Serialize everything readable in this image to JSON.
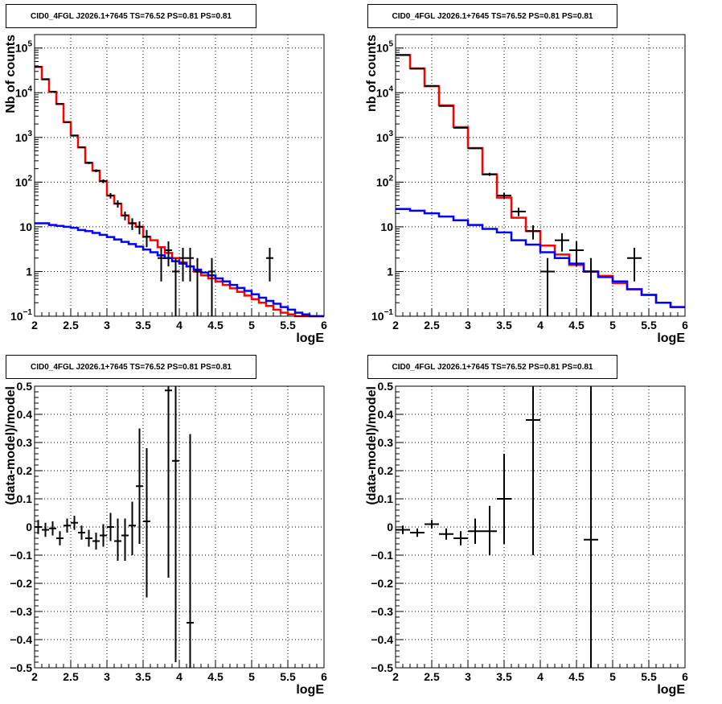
{
  "pads": [
    {
      "title": "CID0_4FGL J2026.1+7645 TS=76.52 PS=0.81 PS=0.81"
    },
    {
      "title": "CID0_4FGL J2026.1+7645 TS=76.52 PS=0.81 PS=0.81"
    },
    {
      "title": "CID0_4FGL J2026.1+7645 TS=76.52 PS=0.81 PS=0.81"
    },
    {
      "title": "CID0_4FGL J2026.1+7645 TS=76.52 PS=0.81 PS=0.81"
    }
  ],
  "colors": {
    "data": "#000000",
    "total_model": "#ff0000",
    "background_model": "#0000ff",
    "grid": "#000000"
  },
  "chart_data": [
    {
      "type": "line",
      "title": "CID0_4FGL J2026.1+7645 TS=76.52 PS=0.81 PS=0.81",
      "xlabel": "logE",
      "ylabel": "Nb of counts",
      "xlim": [
        2,
        6
      ],
      "ylim": [
        0.1,
        200000
      ],
      "yscale": "log",
      "grid": true,
      "xticks": [
        "2",
        "2.5",
        "3",
        "3.5",
        "4",
        "4.5",
        "5",
        "5.5",
        "6"
      ],
      "yticks": [
        {
          "v": 0.1,
          "m": "10",
          "e": "−1"
        },
        {
          "v": 1,
          "m": "1",
          "e": ""
        },
        {
          "v": 10,
          "m": "10",
          "e": ""
        },
        {
          "v": 100,
          "m": "10",
          "e": "2"
        },
        {
          "v": 1000,
          "m": "10",
          "e": "3"
        },
        {
          "v": 10000,
          "m": "10",
          "e": "4"
        },
        {
          "v": 100000,
          "m": "10",
          "e": "5"
        }
      ],
      "bin_width": 0.1,
      "series": [
        {
          "role": "total_model",
          "style": "step",
          "x_low": 2.0,
          "values": [
            38000,
            20000,
            10500,
            5600,
            2200,
            1100,
            600,
            270,
            180,
            105,
            50,
            33,
            18,
            12,
            10,
            6,
            5,
            3.5,
            2.6,
            2.0,
            1.6,
            1.3,
            1.0,
            0.82,
            0.7,
            0.6,
            0.5,
            0.42,
            0.35,
            0.29,
            0.24,
            0.2,
            0.17,
            0.14,
            0.12,
            0.11,
            0.1,
            0.1,
            0.1,
            0.1
          ]
        },
        {
          "role": "background_model",
          "style": "step",
          "x_low": 2.0,
          "values": [
            12,
            12,
            11,
            10.5,
            10,
            9.5,
            8.5,
            8,
            7.3,
            6.6,
            5.9,
            5.2,
            4.6,
            4.1,
            3.6,
            3.1,
            2.7,
            2.3,
            2.0,
            1.7,
            1.5,
            1.3,
            1.1,
            0.95,
            0.82,
            0.7,
            0.6,
            0.5,
            0.43,
            0.37,
            0.31,
            0.26,
            0.22,
            0.19,
            0.16,
            0.14,
            0.12,
            0.11,
            0.1,
            0.1
          ]
        },
        {
          "role": "data",
          "style": "errorbar",
          "half_width": 0.05,
          "points": [
            {
              "x": 2.05,
              "y": 38000,
              "lo": 37800,
              "hi": 38200
            },
            {
              "x": 2.15,
              "y": 20000,
              "lo": 19860,
              "hi": 20140
            },
            {
              "x": 2.25,
              "y": 10500,
              "lo": 10400,
              "hi": 10600
            },
            {
              "x": 2.35,
              "y": 5600,
              "lo": 5520,
              "hi": 5680
            },
            {
              "x": 2.45,
              "y": 2200,
              "lo": 2150,
              "hi": 2250
            },
            {
              "x": 2.55,
              "y": 1100,
              "lo": 1067,
              "hi": 1133
            },
            {
              "x": 2.65,
              "y": 600,
              "lo": 575,
              "hi": 625
            },
            {
              "x": 2.75,
              "y": 270,
              "lo": 254,
              "hi": 286
            },
            {
              "x": 2.85,
              "y": 180,
              "lo": 167,
              "hi": 193
            },
            {
              "x": 2.95,
              "y": 105,
              "lo": 95,
              "hi": 115
            },
            {
              "x": 3.05,
              "y": 50,
              "lo": 43,
              "hi": 57
            },
            {
              "x": 3.15,
              "y": 33,
              "lo": 27,
              "hi": 39
            },
            {
              "x": 3.25,
              "y": 18,
              "lo": 14,
              "hi": 22
            },
            {
              "x": 3.35,
              "y": 12,
              "lo": 8.5,
              "hi": 15.5
            },
            {
              "x": 3.45,
              "y": 10,
              "lo": 6.8,
              "hi": 13.2
            },
            {
              "x": 3.55,
              "y": 6,
              "lo": 3.5,
              "hi": 8.5
            },
            {
              "x": 3.75,
              "y": 2,
              "lo": 0.6,
              "hi": 3.4
            },
            {
              "x": 3.85,
              "y": 3,
              "lo": 1.3,
              "hi": 4.7
            },
            {
              "x": 3.95,
              "y": 1,
              "lo": 0.1,
              "hi": 2.0
            },
            {
              "x": 4.05,
              "y": 2,
              "lo": 0.6,
              "hi": 3.4
            },
            {
              "x": 4.15,
              "y": 2,
              "lo": 0.6,
              "hi": 3.4
            },
            {
              "x": 4.25,
              "y": 1,
              "lo": 0.1,
              "hi": 2.0
            },
            {
              "x": 4.45,
              "y": 1,
              "lo": 0.1,
              "hi": 2.0
            },
            {
              "x": 5.25,
              "y": 2,
              "lo": 0.6,
              "hi": 3.4
            }
          ]
        }
      ]
    },
    {
      "type": "line",
      "title": "CID0_4FGL J2026.1+7645 TS=76.52 PS=0.81 PS=0.81",
      "xlabel": "logE",
      "ylabel": "nb of counts",
      "xlim": [
        2,
        6
      ],
      "ylim": [
        0.1,
        200000
      ],
      "yscale": "log",
      "grid": true,
      "xticks": [
        "2",
        "2.5",
        "3",
        "3.5",
        "4",
        "4.5",
        "5",
        "5.5",
        "6"
      ],
      "yticks": [
        {
          "v": 0.1,
          "m": "10",
          "e": "−1"
        },
        {
          "v": 1,
          "m": "1",
          "e": ""
        },
        {
          "v": 10,
          "m": "10",
          "e": ""
        },
        {
          "v": 100,
          "m": "10",
          "e": "2"
        },
        {
          "v": 1000,
          "m": "10",
          "e": "3"
        },
        {
          "v": 10000,
          "m": "10",
          "e": "4"
        },
        {
          "v": 100000,
          "m": "10",
          "e": "5"
        }
      ],
      "bin_width": 0.2,
      "series": [
        {
          "role": "total_model",
          "style": "step",
          "x_low": 2.0,
          "values": [
            70000,
            35000,
            14000,
            5200,
            1700,
            580,
            150,
            45,
            16,
            8,
            3.8,
            2.4,
            1.4,
            1.0,
            0.8,
            0.55,
            0.4,
            0.3,
            0.2,
            0.16
          ]
        },
        {
          "role": "background_model",
          "style": "step",
          "x_low": 2.0,
          "values": [
            25,
            23,
            20,
            17,
            14,
            11,
            9,
            7.5,
            5,
            4,
            2.7,
            2.0,
            1.5,
            1.0,
            0.75,
            0.6,
            0.4,
            0.3,
            0.2,
            0.16
          ]
        },
        {
          "role": "data",
          "style": "errorbar",
          "half_width": 0.1,
          "points": [
            {
              "x": 2.1,
              "y": 70000,
              "lo": 69700,
              "hi": 70300
            },
            {
              "x": 2.3,
              "y": 34500,
              "lo": 34300,
              "hi": 34700
            },
            {
              "x": 2.5,
              "y": 14200,
              "lo": 14080,
              "hi": 14320
            },
            {
              "x": 2.7,
              "y": 5050,
              "lo": 4980,
              "hi": 5120
            },
            {
              "x": 2.9,
              "y": 1640,
              "lo": 1600,
              "hi": 1680
            },
            {
              "x": 3.1,
              "y": 570,
              "lo": 546,
              "hi": 594
            },
            {
              "x": 3.3,
              "y": 150,
              "lo": 138,
              "hi": 162
            },
            {
              "x": 3.5,
              "y": 50,
              "lo": 43,
              "hi": 57
            },
            {
              "x": 3.7,
              "y": 22,
              "lo": 17.3,
              "hi": 26.7
            },
            {
              "x": 3.9,
              "y": 8,
              "lo": 5.2,
              "hi": 10.8
            },
            {
              "x": 4.1,
              "y": 1,
              "lo": 0.1,
              "hi": 2.0
            },
            {
              "x": 4.3,
              "y": 5,
              "lo": 2.8,
              "hi": 7.2
            },
            {
              "x": 4.5,
              "y": 3,
              "lo": 1.3,
              "hi": 4.7
            },
            {
              "x": 4.7,
              "y": 1,
              "lo": 0.1,
              "hi": 2.0
            },
            {
              "x": 5.3,
              "y": 2,
              "lo": 0.6,
              "hi": 3.4
            }
          ]
        }
      ]
    },
    {
      "type": "scatter",
      "title": "CID0_4FGL J2026.1+7645 TS=76.52 PS=0.81 PS=0.81",
      "xlabel": "logE",
      "ylabel": "(data-model)/model",
      "xlim": [
        2,
        6
      ],
      "ylim": [
        -0.5,
        0.5
      ],
      "yscale": "linear",
      "grid": true,
      "xticks": [
        "2",
        "2.5",
        "3",
        "3.5",
        "4",
        "4.5",
        "5",
        "5.5",
        "6"
      ],
      "yticks": [
        {
          "v": -0.5,
          "m": "−0.5",
          "e": ""
        },
        {
          "v": -0.4,
          "m": "−0.4",
          "e": ""
        },
        {
          "v": -0.3,
          "m": "−0.3",
          "e": ""
        },
        {
          "v": -0.2,
          "m": "−0.2",
          "e": ""
        },
        {
          "v": -0.1,
          "m": "−0.1",
          "e": ""
        },
        {
          "v": 0,
          "m": "0",
          "e": ""
        },
        {
          "v": 0.1,
          "m": "0.1",
          "e": ""
        },
        {
          "v": 0.2,
          "m": "0.2",
          "e": ""
        },
        {
          "v": 0.3,
          "m": "0.3",
          "e": ""
        },
        {
          "v": 0.4,
          "m": "0.4",
          "e": ""
        },
        {
          "v": 0.5,
          "m": "0.5",
          "e": ""
        }
      ],
      "series": [
        {
          "role": "data",
          "style": "errorbar",
          "half_width": 0.05,
          "points": [
            {
              "x": 2.05,
              "y": 0.0,
              "lo": -0.025,
              "hi": 0.025
            },
            {
              "x": 2.15,
              "y": -0.01,
              "lo": -0.035,
              "hi": 0.015
            },
            {
              "x": 2.25,
              "y": -0.005,
              "lo": -0.03,
              "hi": 0.02
            },
            {
              "x": 2.35,
              "y": -0.04,
              "lo": -0.065,
              "hi": -0.015
            },
            {
              "x": 2.45,
              "y": 0.005,
              "lo": -0.02,
              "hi": 0.03
            },
            {
              "x": 2.55,
              "y": 0.015,
              "lo": -0.01,
              "hi": 0.04
            },
            {
              "x": 2.65,
              "y": -0.02,
              "lo": -0.045,
              "hi": 0.005
            },
            {
              "x": 2.75,
              "y": -0.04,
              "lo": -0.07,
              "hi": -0.01
            },
            {
              "x": 2.85,
              "y": -0.05,
              "lo": -0.08,
              "hi": -0.02
            },
            {
              "x": 2.95,
              "y": -0.03,
              "lo": -0.07,
              "hi": 0.01
            },
            {
              "x": 3.05,
              "y": 0.0,
              "lo": -0.05,
              "hi": 0.05
            },
            {
              "x": 3.15,
              "y": -0.05,
              "lo": -0.12,
              "hi": 0.03
            },
            {
              "x": 3.25,
              "y": -0.03,
              "lo": -0.12,
              "hi": 0.03
            },
            {
              "x": 3.35,
              "y": 0.005,
              "lo": -0.1,
              "hi": 0.09
            },
            {
              "x": 3.45,
              "y": 0.145,
              "lo": -0.06,
              "hi": 0.35
            },
            {
              "x": 3.55,
              "y": 0.02,
              "lo": -0.25,
              "hi": 0.28
            },
            {
              "x": 3.85,
              "y": 0.485,
              "lo": -0.18,
              "hi": 0.5
            },
            {
              "x": 3.95,
              "y": 0.235,
              "lo": -0.48,
              "hi": 0.5
            },
            {
              "x": 4.15,
              "y": -0.34,
              "lo": -0.5,
              "hi": 0.33
            }
          ]
        }
      ]
    },
    {
      "type": "scatter",
      "title": "CID0_4FGL J2026.1+7645 TS=76.52 PS=0.81 PS=0.81",
      "xlabel": "logE",
      "ylabel": "(data-model)/model",
      "xlim": [
        2,
        6
      ],
      "ylim": [
        -0.5,
        0.5
      ],
      "yscale": "linear",
      "grid": true,
      "xticks": [
        "2",
        "2.5",
        "3",
        "3.5",
        "4",
        "4.5",
        "5",
        "5.5",
        "6"
      ],
      "yticks": [
        {
          "v": -0.5,
          "m": "−0.5",
          "e": ""
        },
        {
          "v": -0.4,
          "m": "−0.4",
          "e": ""
        },
        {
          "v": -0.3,
          "m": "−0.3",
          "e": ""
        },
        {
          "v": -0.2,
          "m": "−0.2",
          "e": ""
        },
        {
          "v": -0.1,
          "m": "−0.1",
          "e": ""
        },
        {
          "v": 0,
          "m": "0",
          "e": ""
        },
        {
          "v": 0.1,
          "m": "0.1",
          "e": ""
        },
        {
          "v": 0.2,
          "m": "0.2",
          "e": ""
        },
        {
          "v": 0.3,
          "m": "0.3",
          "e": ""
        },
        {
          "v": 0.4,
          "m": "0.4",
          "e": ""
        },
        {
          "v": 0.5,
          "m": "0.5",
          "e": ""
        }
      ],
      "series": [
        {
          "role": "data",
          "style": "errorbar",
          "half_width": 0.1,
          "points": [
            {
              "x": 2.1,
              "y": -0.01,
              "lo": -0.025,
              "hi": 0.005
            },
            {
              "x": 2.3,
              "y": -0.02,
              "lo": -0.035,
              "hi": -0.005
            },
            {
              "x": 2.5,
              "y": 0.01,
              "lo": -0.005,
              "hi": 0.025
            },
            {
              "x": 2.7,
              "y": -0.025,
              "lo": -0.045,
              "hi": -0.005
            },
            {
              "x": 2.9,
              "y": -0.04,
              "lo": -0.065,
              "hi": -0.015
            },
            {
              "x": 3.1,
              "y": -0.015,
              "lo": -0.06,
              "hi": 0.03
            },
            {
              "x": 3.3,
              "y": -0.015,
              "lo": -0.1,
              "hi": 0.075
            },
            {
              "x": 3.5,
              "y": 0.1,
              "lo": -0.06,
              "hi": 0.26
            },
            {
              "x": 3.9,
              "y": 0.38,
              "lo": -0.1,
              "hi": 0.5
            },
            {
              "x": 4.7,
              "y": -0.045,
              "lo": -0.5,
              "hi": 0.5
            }
          ]
        }
      ]
    }
  ]
}
